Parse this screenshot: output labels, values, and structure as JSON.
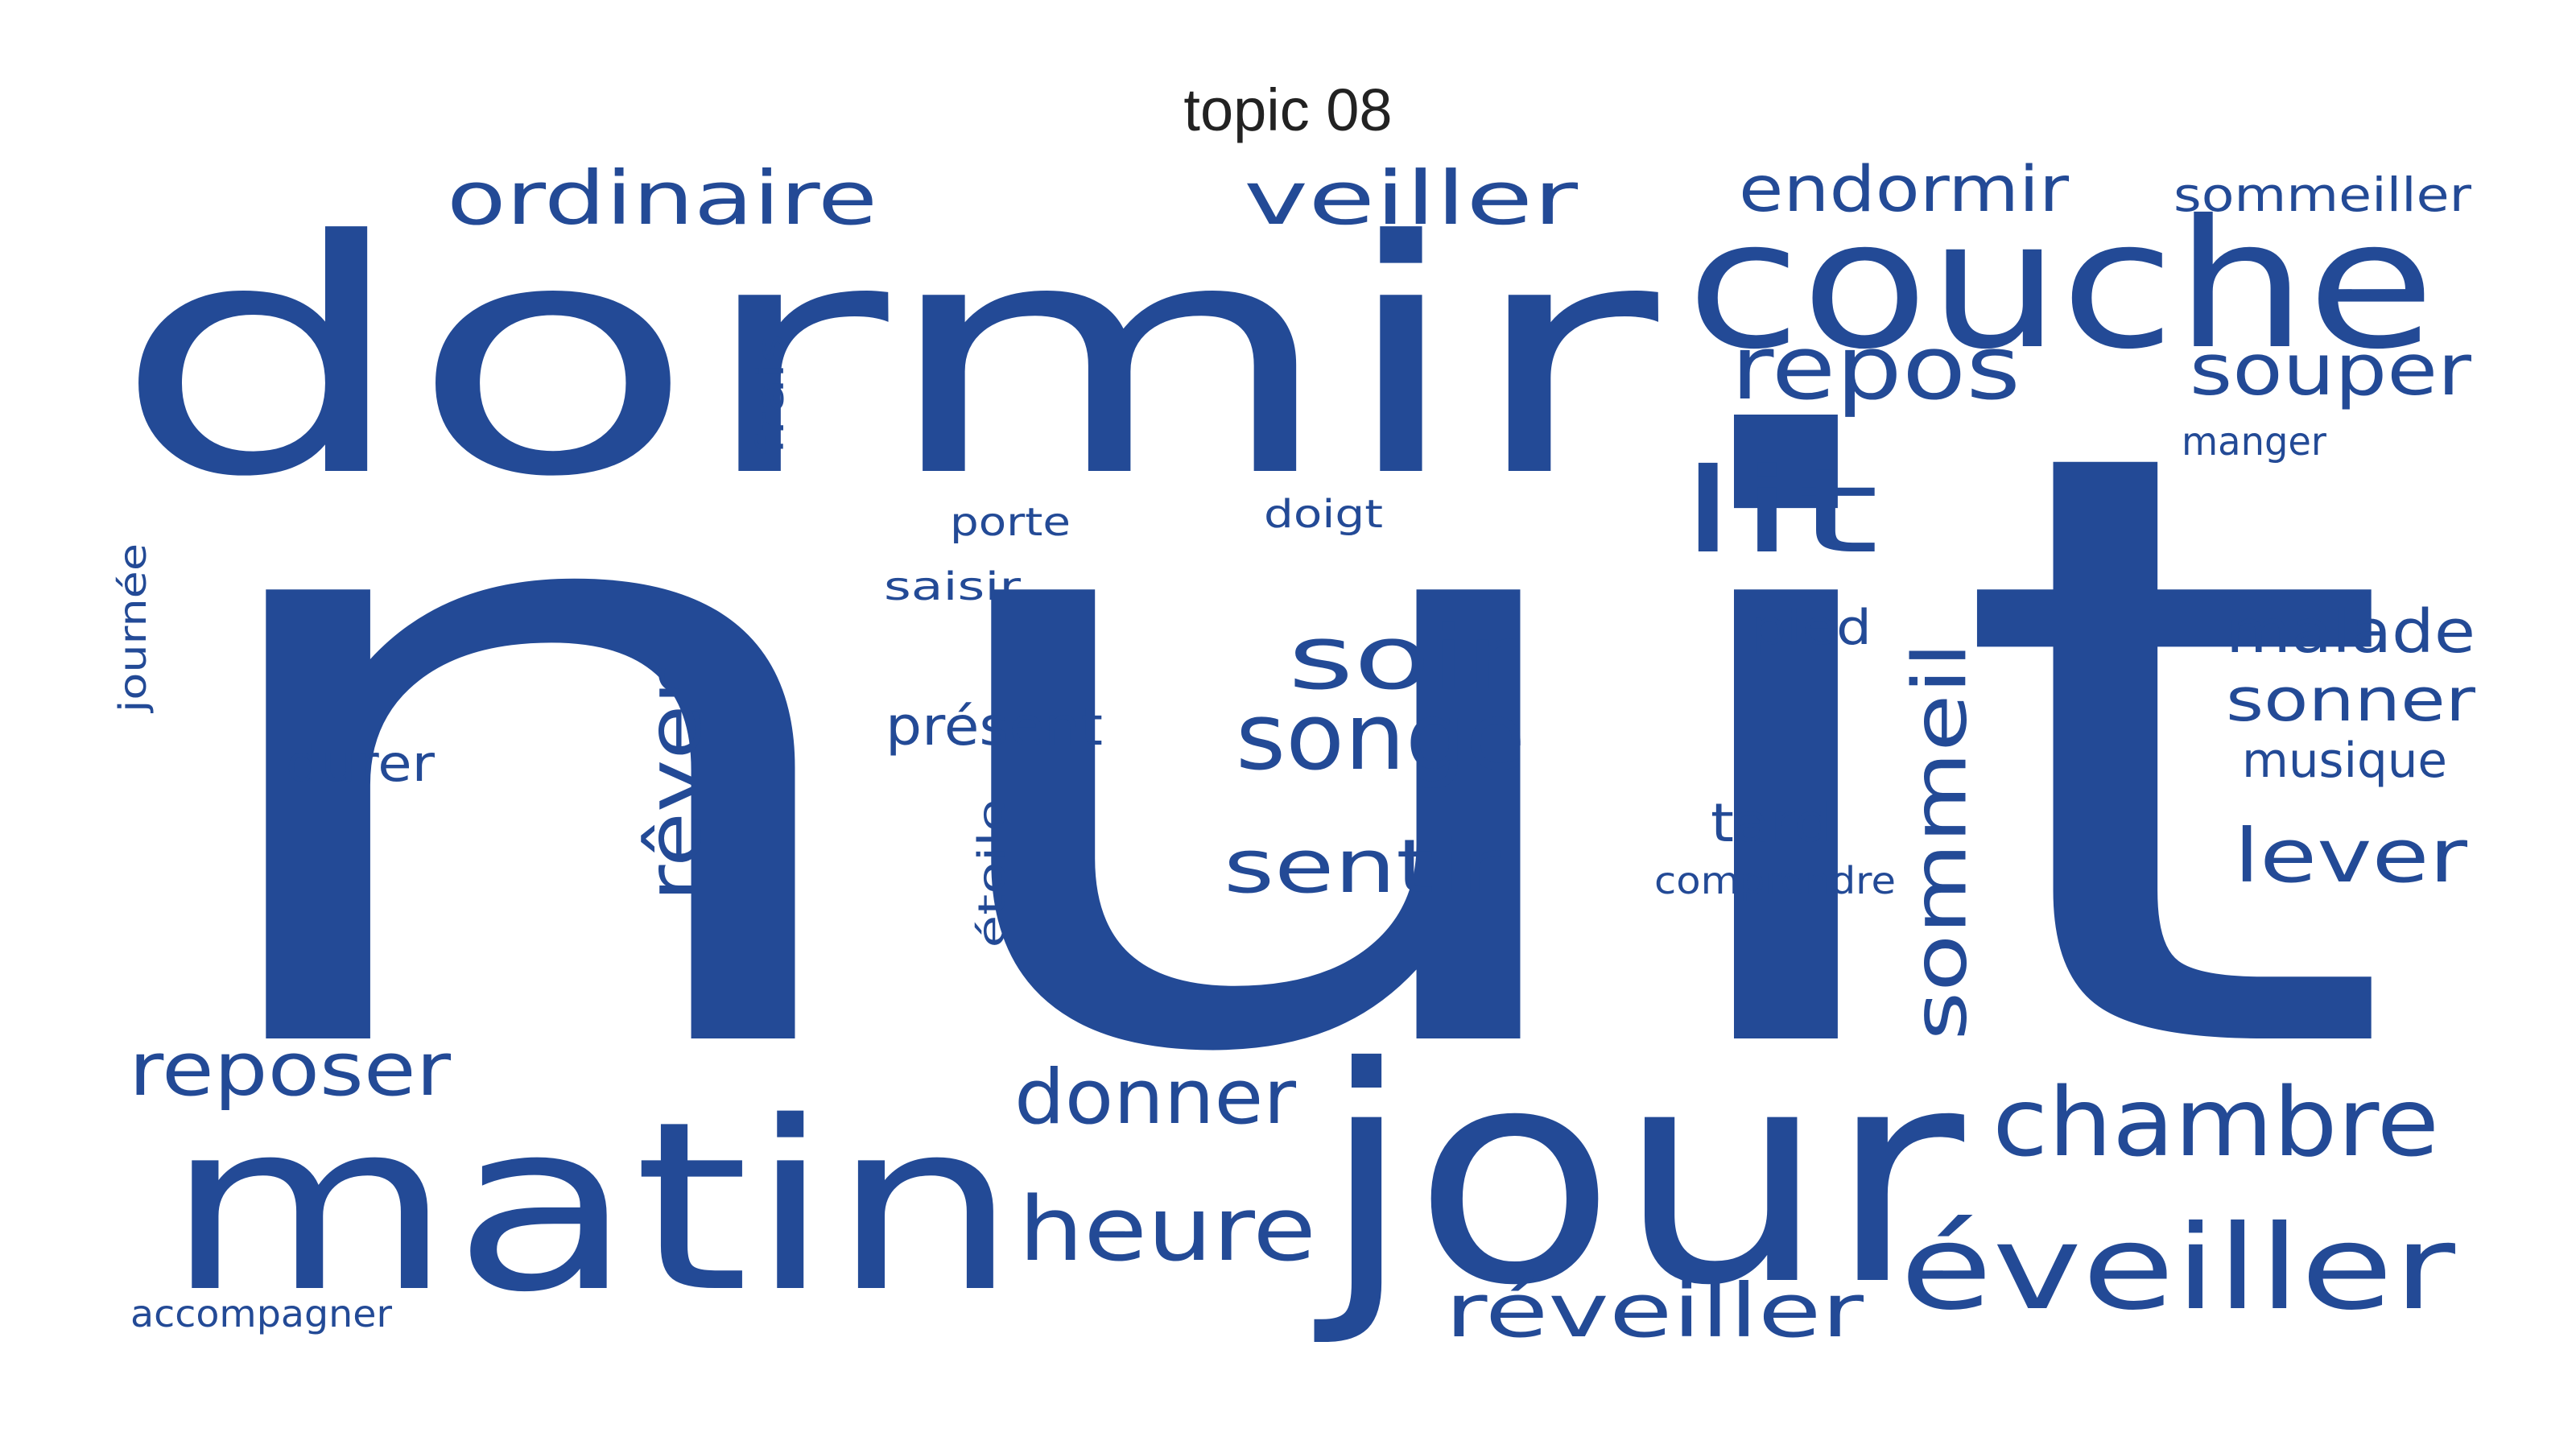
{
  "title": "topic 08",
  "style": {
    "word_color": "#234a96",
    "background": "#ffffff"
  },
  "words": [
    {
      "text": "nuit"
    },
    {
      "text": "dormir"
    },
    {
      "text": "jour"
    },
    {
      "text": "matin"
    },
    {
      "text": "couche"
    },
    {
      "text": "lit"
    },
    {
      "text": "repos"
    },
    {
      "text": "ordinaire"
    },
    {
      "text": "veiller"
    },
    {
      "text": "endormir"
    },
    {
      "text": "sommeiller"
    },
    {
      "text": "souper"
    },
    {
      "text": "manger"
    },
    {
      "text": "porte"
    },
    {
      "text": "doigt"
    },
    {
      "text": "saisir"
    },
    {
      "text": "pied"
    },
    {
      "text": "soir"
    },
    {
      "text": "songe"
    },
    {
      "text": "malade"
    },
    {
      "text": "sonner"
    },
    {
      "text": "musique"
    },
    {
      "text": "présent"
    },
    {
      "text": "durer"
    },
    {
      "text": "tard"
    },
    {
      "text": "comprendre"
    },
    {
      "text": "sentir"
    },
    {
      "text": "lever"
    },
    {
      "text": "reposer"
    },
    {
      "text": "donner"
    },
    {
      "text": "chambre"
    },
    {
      "text": "heure"
    },
    {
      "text": "éveiller"
    },
    {
      "text": "réveiller"
    },
    {
      "text": "accompagner"
    },
    {
      "text": "frais"
    },
    {
      "text": "journée"
    },
    {
      "text": "rêver"
    },
    {
      "text": "étoile"
    },
    {
      "text": "sommeil"
    }
  ]
}
